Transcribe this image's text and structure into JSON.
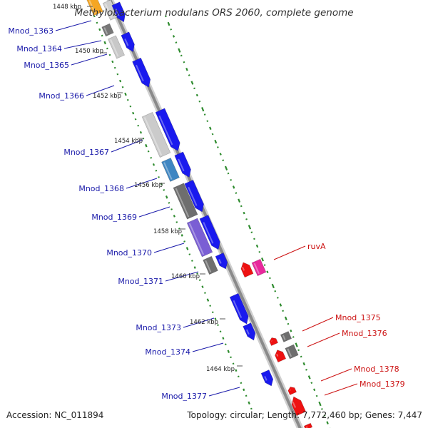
{
  "title": "Methylobacterium nodulans ORS 2060, complete genome",
  "accession_text": "Accession: NC_011894",
  "summary_text": "Topology: circular; Length: 7,772,460 bp; Genes: 7,447",
  "colors": {
    "backbone": "#8a8a8a",
    "gc_ticks": "#2e8b2e",
    "forward_cds": "#1a1aee",
    "reverse_cds": "#ee1111",
    "left_labels": "#1a1aaa",
    "right_labels": "#cc1111",
    "kbp_labels": "#222222"
  },
  "kbp_ticks": [
    "1448 kbp",
    "1450 kbp",
    "1452 kbp",
    "1454 kbp",
    "1456 kbp",
    "1458 kbp",
    "1460 kbp",
    "1462 kbp",
    "1464 kbp"
  ],
  "left_genes": [
    "Mnod_1363",
    "Mnod_1364",
    "Mnod_1365",
    "Mnod_1366",
    "Mnod_1367",
    "Mnod_1368",
    "Mnod_1369",
    "Mnod_1370",
    "Mnod_1371",
    "Mnod_1373",
    "Mnod_1374",
    "Mnod_1377"
  ],
  "right_genes": [
    "ruvA",
    "Mnod_1375",
    "Mnod_1376",
    "Mnod_1378",
    "Mnod_1379"
  ]
}
